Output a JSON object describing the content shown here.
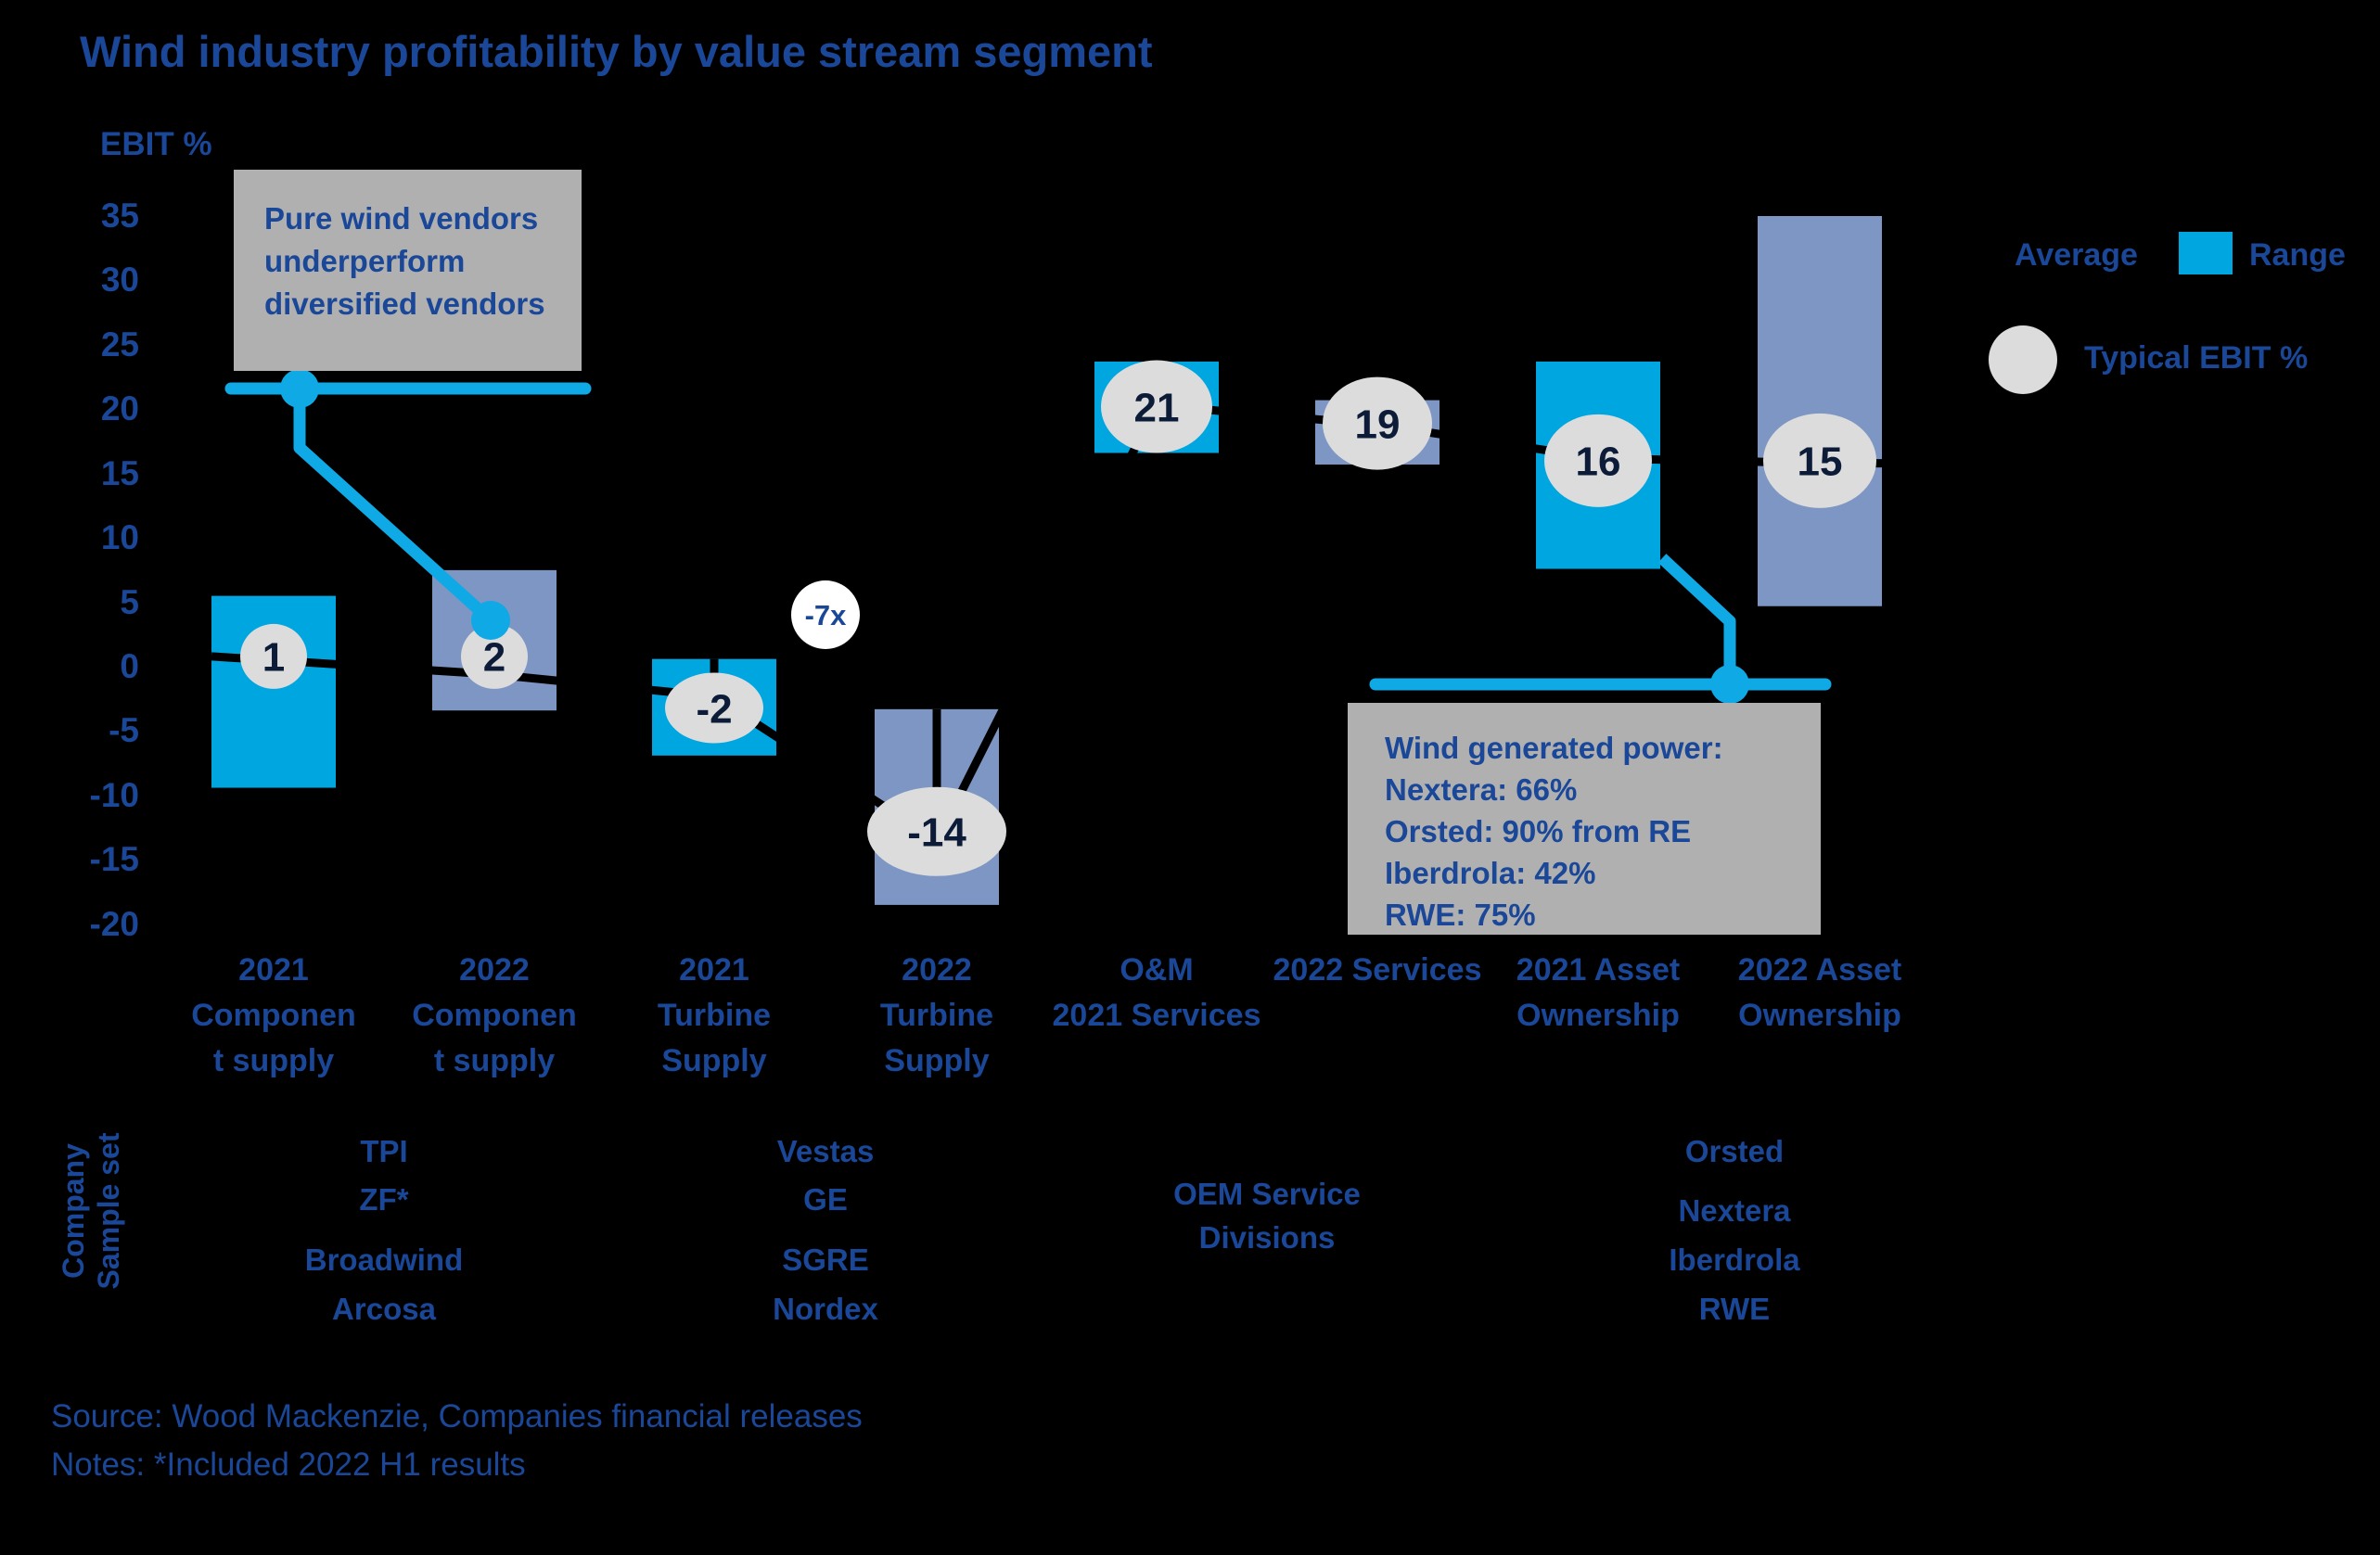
{
  "title": "Wind industry profitability by value stream segment",
  "y_axis": {
    "label": "EBIT %",
    "ticks": [
      35,
      30,
      25,
      20,
      15,
      10,
      5,
      0,
      -5,
      -10,
      -15,
      -20
    ]
  },
  "legend": {
    "average_label": "Average",
    "range_label": "Range",
    "typical_label": "Typical EBIT %"
  },
  "annotations": {
    "pure_wind_lines": [
      "Pure wind vendors",
      "underperform",
      "diversified vendors"
    ],
    "wind_power_lines": [
      "Wind generated power:",
      "Nextera: 66%",
      "Orsted: 90% from RE",
      "Iberdrola: 42%",
      "RWE: 75%"
    ],
    "multiplier": "-7x"
  },
  "chart_data": {
    "type": "bar",
    "subtype": "floating-range-bars-with-average-line",
    "title": "Wind industry profitability by value stream segment",
    "xlabel": "",
    "ylabel": "EBIT %",
    "ylim": [
      -20,
      35
    ],
    "grid": false,
    "legend_position": "top-right",
    "categories": [
      {
        "label_lines": [
          "2021",
          "Componen",
          "t supply"
        ],
        "range_high": 5.5,
        "range_low": -9.4,
        "average": 0.5,
        "typical": "1",
        "typical_pos": 0.8,
        "color_key": "cyan",
        "circle_rx": 36,
        "circle_ry": 35,
        "stub": false
      },
      {
        "label_lines": [
          "2022",
          "Componen",
          "t supply"
        ],
        "range_high": 7.5,
        "range_low": -3.4,
        "average": -0.6,
        "typical": "2",
        "typical_pos": 0.8,
        "color_key": "slate",
        "circle_rx": 36,
        "circle_ry": 35,
        "stub": false
      },
      {
        "label_lines": [
          "2021",
          "Turbine",
          "Supply"
        ],
        "range_high": 0.6,
        "range_low": -6.9,
        "average": -2.3,
        "typical": "-2",
        "typical_pos": -3.2,
        "color_key": "cyan",
        "circle_rx": 53,
        "circle_ry": 38,
        "stub": true
      },
      {
        "label_lines": [
          "2022",
          "Turbine",
          "Supply"
        ],
        "range_high": -3.3,
        "range_low": -18.5,
        "average": -13.5,
        "typical": "-14",
        "typical_pos": -12.8,
        "color_key": "slate",
        "circle_rx": 75,
        "circle_ry": 48,
        "stub": true
      },
      {
        "label_lines": [
          "O&M",
          "2021 Services"
        ],
        "range_high": 23.7,
        "range_low": 16.6,
        "average": 20.3,
        "typical": "21",
        "typical_pos": 20.2,
        "color_key": "cyan",
        "circle_rx": 60,
        "circle_ry": 50,
        "stub": false
      },
      {
        "label_lines": [
          "2022 Services"
        ],
        "range_high": 20.7,
        "range_low": 15.7,
        "average": 18.8,
        "typical": "19",
        "typical_pos": 18.9,
        "color_key": "slate",
        "circle_rx": 59,
        "circle_ry": 50,
        "stub": false
      },
      {
        "label_lines": [
          "2021 Asset",
          "Ownership"
        ],
        "range_high": 23.7,
        "range_low": 7.6,
        "average": 16.2,
        "typical": "16",
        "typical_pos": 16.0,
        "color_key": "cyan",
        "circle_rx": 58,
        "circle_ry": 50,
        "stub": false
      },
      {
        "label_lines": [
          "2022 Asset",
          "Ownership"
        ],
        "range_high": 35.0,
        "range_low": 4.7,
        "average": 15.8,
        "typical": "15",
        "typical_pos": 16.0,
        "color_key": "slate",
        "circle_rx": 61,
        "circle_ry": 51,
        "stub": false
      }
    ]
  },
  "sample_set": {
    "row_label_lines": [
      "Company",
      "Sample set"
    ],
    "columns": [
      {
        "items": [
          "TPI",
          "ZF*",
          "Broadwind",
          "Arcosa"
        ]
      },
      {
        "items": [
          "Vestas",
          "GE",
          "SGRE",
          "Nordex"
        ]
      },
      {
        "items": [
          "OEM Service",
          "Divisions"
        ]
      },
      {
        "items": [
          "Orsted",
          "Nextera",
          "Iberdrola",
          "RWE"
        ]
      }
    ]
  },
  "footer": {
    "source": "Source: Wood Mackenzie, Companies financial releases",
    "notes": "Notes: *Included 2022 H1 results"
  },
  "colors": {
    "background": "#000000",
    "navy": "#1a4798",
    "navy_dark": "#0c1c38",
    "cyan_bar": "#00a6e0",
    "cyan_line": "#0fa9e6",
    "slate_bar": "#7e96c4",
    "circle_gray": "#dcdcdc",
    "box_gray": "#b0b0b0",
    "white": "#ffffff",
    "average_line": "#000000"
  }
}
